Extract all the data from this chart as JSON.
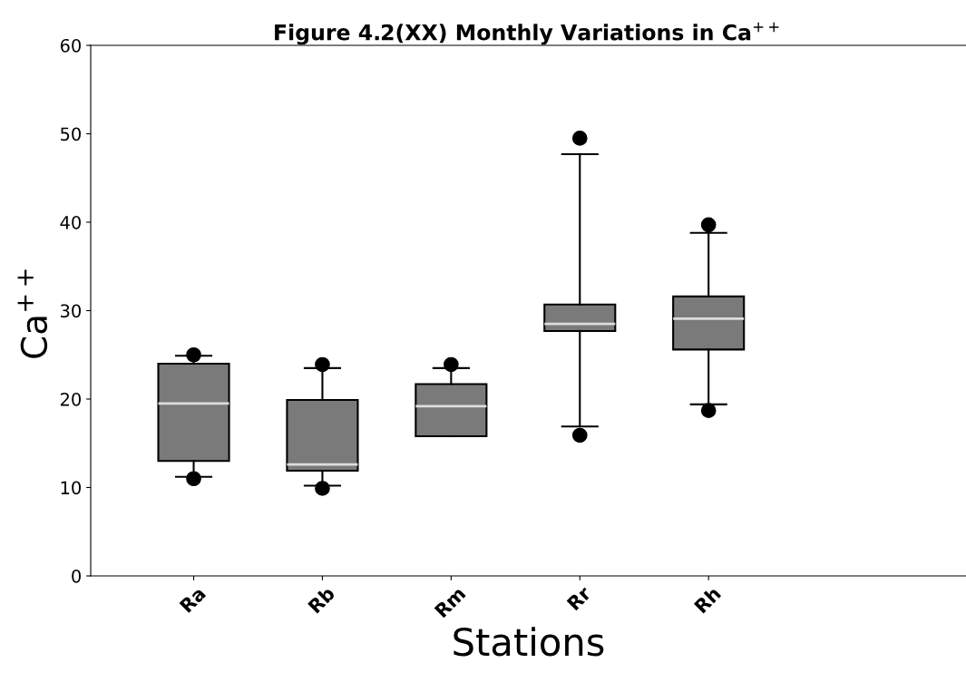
{
  "chart_data": {
    "type": "box",
    "title": "Figure 4.2(XX) Monthly Variations in Ca$^{++}$",
    "xlabel": "Stations",
    "ylabel": "Ca$^{++}$",
    "categories": [
      "Ra",
      "Rb",
      "Rm",
      "Rr",
      "Rh"
    ],
    "boxes": [
      {
        "low": 11.2,
        "q1": 13.0,
        "median": 19.5,
        "q3": 24.0,
        "high": 24.9,
        "outliers": [
          25.0,
          11.0
        ]
      },
      {
        "low": 10.2,
        "q1": 11.9,
        "median": 12.6,
        "q3": 19.9,
        "high": 23.5,
        "outliers": [
          23.9,
          9.9
        ]
      },
      {
        "low": 15.8,
        "q1": 15.8,
        "median": 19.2,
        "q3": 21.7,
        "high": 23.5,
        "outliers": [
          23.9
        ]
      },
      {
        "low": 16.9,
        "q1": 27.7,
        "median": 28.5,
        "q3": 30.7,
        "high": 47.7,
        "outliers": [
          49.5,
          15.9
        ]
      },
      {
        "low": 19.4,
        "q1": 25.6,
        "median": 29.1,
        "q3": 31.6,
        "high": 38.8,
        "outliers": [
          39.7,
          18.7
        ]
      }
    ],
    "color": "#7a7a7a",
    "ylim": [
      0,
      60
    ],
    "yticks": [
      0,
      10,
      20,
      30,
      40,
      50,
      60
    ],
    "grid": false,
    "legend": false
  }
}
